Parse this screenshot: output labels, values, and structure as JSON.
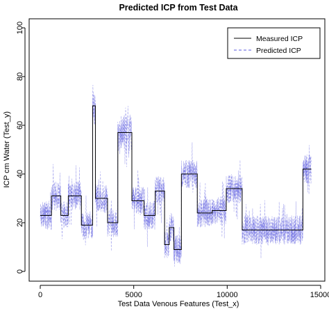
{
  "chart_data": {
    "type": "line",
    "title": "Predicted ICP from Test Data",
    "xlabel": "Test Data Venous Features (Test_x)",
    "ylabel": "ICP cm Water (Test_y)",
    "xlim": [
      0,
      15000
    ],
    "ylim": [
      0,
      100
    ],
    "xticks": [
      0,
      5000,
      10000,
      15000
    ],
    "xtick_labels": [
      "0",
      "5000",
      "10000",
      "15000"
    ],
    "yticks": [
      0,
      20,
      40,
      60,
      80,
      100
    ],
    "ytick_labels": [
      "0",
      "20",
      "40",
      "60",
      "80",
      "100"
    ],
    "grid": false,
    "legend_position": "top-right",
    "series": [
      {
        "name": "Measured ICP",
        "style": "solid",
        "color": "#000000",
        "segments": [
          {
            "x_start": 0,
            "x_end": 600,
            "y": 23
          },
          {
            "x_start": 600,
            "x_end": 1100,
            "y": 31
          },
          {
            "x_start": 1100,
            "x_end": 1500,
            "y": 23
          },
          {
            "x_start": 1500,
            "x_end": 2200,
            "y": 31
          },
          {
            "x_start": 2200,
            "x_end": 2800,
            "y": 19
          },
          {
            "x_start": 2800,
            "x_end": 2950,
            "y": 68
          },
          {
            "x_start": 2950,
            "x_end": 3600,
            "y": 30
          },
          {
            "x_start": 3600,
            "x_end": 4150,
            "y": 20
          },
          {
            "x_start": 4150,
            "x_end": 4900,
            "y": 57
          },
          {
            "x_start": 4900,
            "x_end": 5550,
            "y": 29
          },
          {
            "x_start": 5550,
            "x_end": 6150,
            "y": 23
          },
          {
            "x_start": 6150,
            "x_end": 6650,
            "y": 33
          },
          {
            "x_start": 6650,
            "x_end": 6900,
            "y": 11
          },
          {
            "x_start": 6900,
            "x_end": 7150,
            "y": 18
          },
          {
            "x_start": 7150,
            "x_end": 7550,
            "y": 9
          },
          {
            "x_start": 7550,
            "x_end": 8400,
            "y": 40
          },
          {
            "x_start": 8400,
            "x_end": 9200,
            "y": 24
          },
          {
            "x_start": 9200,
            "x_end": 9950,
            "y": 25
          },
          {
            "x_start": 9950,
            "x_end": 10800,
            "y": 34
          },
          {
            "x_start": 10800,
            "x_end": 14050,
            "y": 17
          },
          {
            "x_start": 14050,
            "x_end": 14500,
            "y": 42
          }
        ]
      },
      {
        "name": "Predicted ICP",
        "style": "dashed",
        "color": "#5a5adf",
        "description_noise_spread": 6
      }
    ]
  }
}
